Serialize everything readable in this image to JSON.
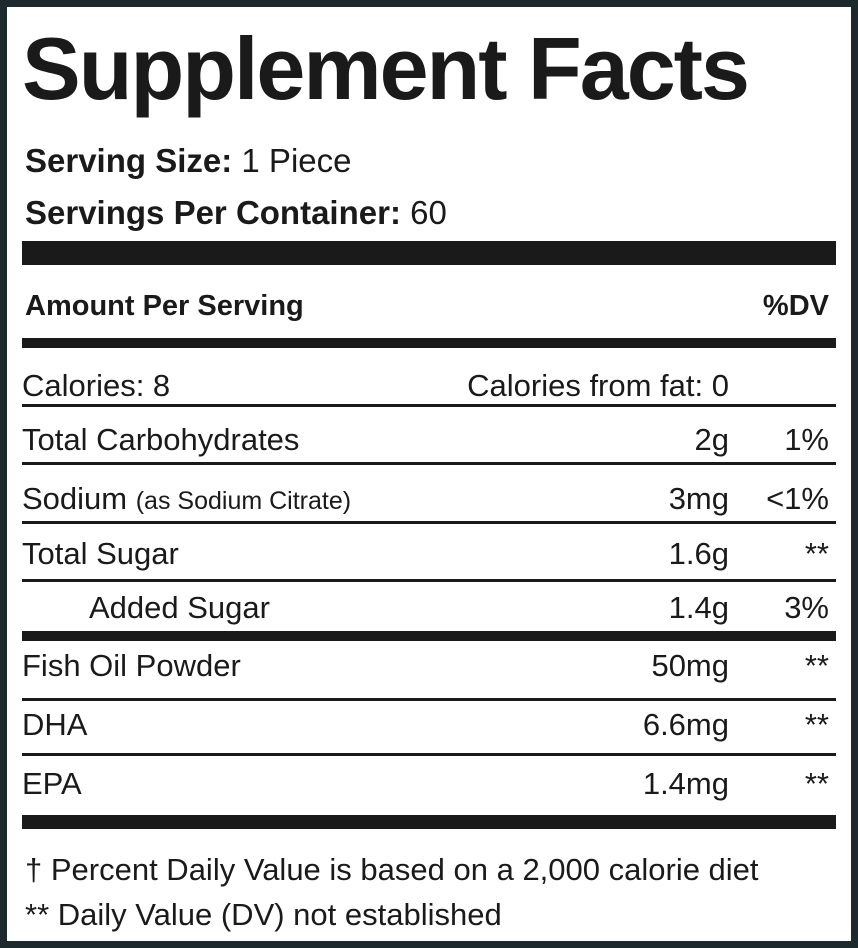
{
  "title": "Supplement Facts",
  "serving": [
    {
      "label": "Serving Size:",
      "value": "1 Piece"
    },
    {
      "label": "Servings Per Container:",
      "value": "60"
    }
  ],
  "header": {
    "amount": "Amount Per Serving",
    "dv": "%DV"
  },
  "calories": {
    "total": "Calories: 8",
    "fat": "Calories from fat: 0"
  },
  "rows": [
    {
      "name": "Total Carbohydrates",
      "amount": "2g",
      "dv": "1%"
    },
    {
      "name": "Sodium",
      "note": "(as Sodium Citrate)",
      "amount": "3mg",
      "dv": "<1%"
    },
    {
      "name": "Total Sugar",
      "amount": "1.6g",
      "dv": "**"
    },
    {
      "name": "Added Sugar",
      "amount": "1.4g",
      "dv": "3%",
      "indent": true
    },
    {
      "name": "Fish Oil Powder",
      "amount": "50mg",
      "dv": "**"
    },
    {
      "name": "DHA",
      "amount": "6.6mg",
      "dv": "**"
    },
    {
      "name": "EPA",
      "amount": "1.4mg",
      "dv": "**"
    }
  ],
  "footnotes": [
    "† Percent Daily Value is based on a 2,000 calorie diet",
    "** Daily Value (DV) not established"
  ]
}
